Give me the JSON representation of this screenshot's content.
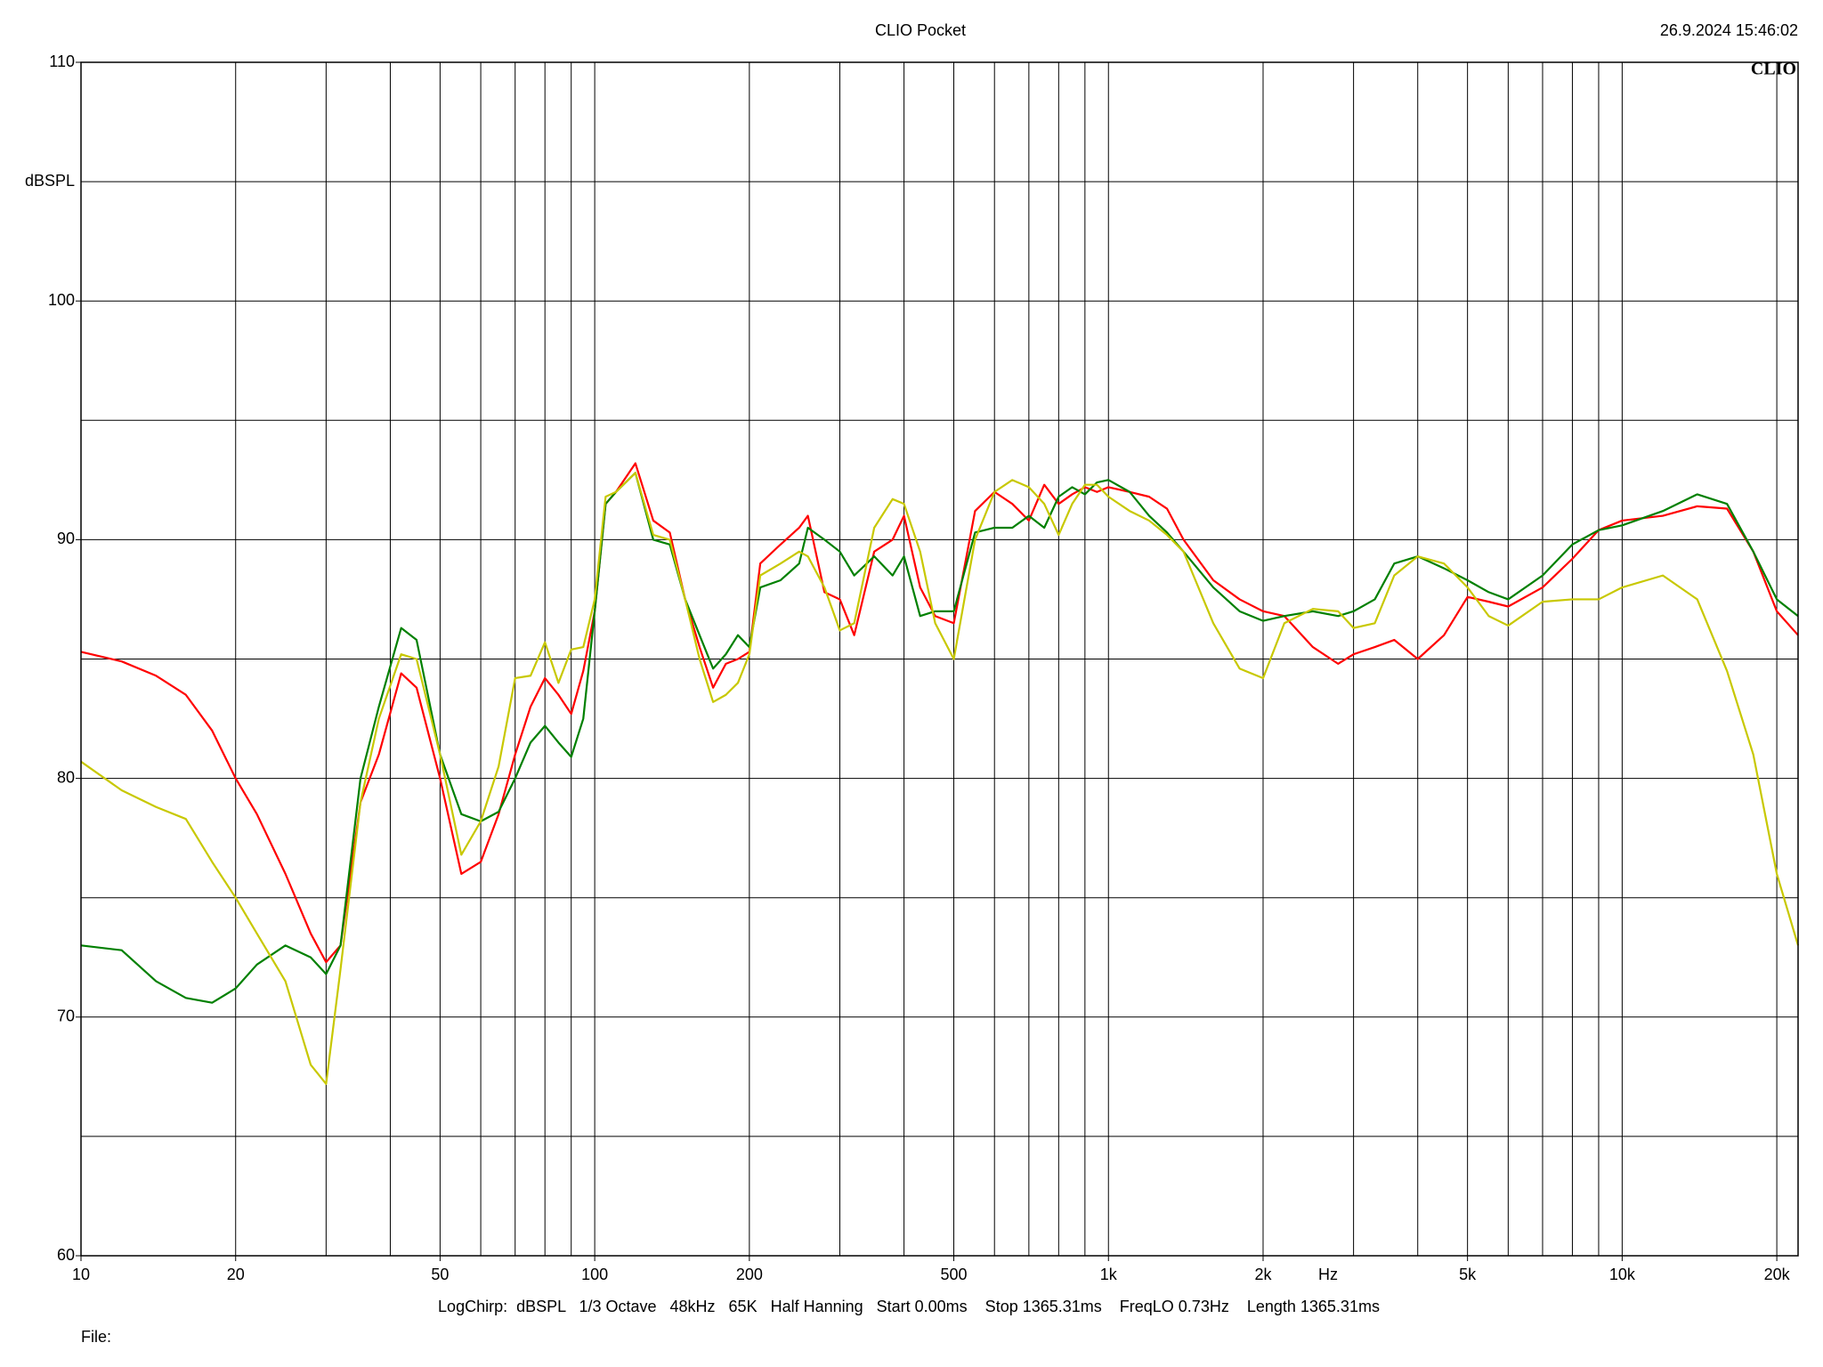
{
  "chart_data": {
    "type": "line",
    "title": "CLIO Pocket",
    "timestamp": "26.9.2024 15:46:02",
    "logo": "CLIO",
    "y_label": "dBSPL",
    "x_label": "Hz",
    "footer": "LogChirp:  dBSPL   1/3 Octave   48kHz   65K   Half Hanning   Start 0.00ms    Stop 1365.31ms    FreqLO 0.73Hz    Length 1365.31ms",
    "file_label": "File:",
    "x_log": true,
    "xlim": [
      10,
      22000
    ],
    "ylim": [
      60,
      110
    ],
    "xticks": [
      10,
      20,
      50,
      100,
      200,
      500,
      {
        "value": 1000,
        "label": "1k"
      },
      {
        "value": 2000,
        "label": "2k"
      },
      {
        "value": 5000,
        "label": "5k"
      },
      {
        "value": 10000,
        "label": "10k"
      },
      {
        "value": 20000,
        "label": "20k"
      }
    ],
    "xgrid": [
      20,
      30,
      40,
      50,
      60,
      70,
      80,
      90,
      100,
      200,
      300,
      400,
      500,
      600,
      700,
      800,
      900,
      1000,
      2000,
      3000,
      4000,
      5000,
      6000,
      7000,
      8000,
      9000,
      10000,
      20000
    ],
    "yticks": [
      60,
      70,
      80,
      90,
      100,
      110
    ],
    "ygrid": [
      65,
      70,
      75,
      80,
      85,
      90,
      95,
      100,
      105
    ],
    "grid": true,
    "x": [
      10,
      12,
      14,
      16,
      18,
      20,
      22,
      25,
      28,
      30,
      32,
      35,
      38,
      42,
      45,
      50,
      55,
      60,
      65,
      70,
      75,
      80,
      85,
      90,
      95,
      100,
      105,
      110,
      120,
      130,
      140,
      150,
      160,
      170,
      180,
      190,
      200,
      210,
      230,
      250,
      260,
      280,
      300,
      320,
      350,
      380,
      400,
      430,
      460,
      500,
      550,
      600,
      650,
      700,
      750,
      800,
      850,
      900,
      950,
      1000,
      1100,
      1200,
      1300,
      1400,
      1600,
      1800,
      2000,
      2200,
      2500,
      2800,
      3000,
      3300,
      3600,
      4000,
      4500,
      5000,
      5500,
      6000,
      7000,
      8000,
      9000,
      10000,
      12000,
      14000,
      16000,
      18000,
      20000,
      22000
    ],
    "series": [
      {
        "color": "#ff0000",
        "values": [
          85.3,
          84.9,
          84.3,
          83.5,
          82.0,
          80,
          78.5,
          76,
          73.5,
          72.3,
          73,
          79,
          81,
          84.4,
          83.8,
          80,
          76,
          76.5,
          78.5,
          81,
          83,
          84.2,
          83.5,
          82.7,
          84.5,
          87,
          91.5,
          92,
          93.2,
          90.8,
          90.3,
          87.5,
          85.5,
          83.8,
          84.8,
          85,
          85.3,
          89,
          89.8,
          90.5,
          91,
          87.8,
          87.5,
          86,
          89.5,
          90,
          91,
          88,
          86.8,
          86.5,
          91.2,
          92,
          91.5,
          90.8,
          92.3,
          91.5,
          91.9,
          92.2,
          92.0,
          92.2,
          92,
          91.8,
          91.3,
          90,
          88.3,
          87.5,
          87,
          86.8,
          85.5,
          84.8,
          85.2,
          85.5,
          85.8,
          85,
          86,
          87.6,
          87.4,
          87.2,
          88,
          89.2,
          90.4,
          90.8,
          91,
          91.4,
          91.3,
          89.5,
          87,
          86
        ]
      },
      {
        "color": "#008000",
        "values": [
          73,
          72.8,
          71.5,
          70.8,
          70.6,
          71.2,
          72.2,
          73,
          72.5,
          71.8,
          73,
          80,
          83,
          86.3,
          85.8,
          81,
          78.5,
          78.2,
          78.6,
          80,
          81.5,
          82.2,
          81.5,
          80.9,
          82.5,
          87,
          91.5,
          92,
          92.8,
          90,
          89.8,
          87.5,
          86,
          84.6,
          85.2,
          86,
          85.5,
          88,
          88.3,
          89,
          90.5,
          90,
          89.5,
          88.5,
          89.3,
          88.5,
          89.3,
          86.8,
          87,
          87,
          90.3,
          90.5,
          90.5,
          91,
          90.5,
          91.8,
          92.2,
          91.9,
          92.4,
          92.5,
          92,
          91,
          90.3,
          89.5,
          88,
          87,
          86.6,
          86.8,
          87,
          86.8,
          87,
          87.5,
          89,
          89.3,
          88.8,
          88.3,
          87.8,
          87.5,
          88.5,
          89.8,
          90.4,
          90.6,
          91.2,
          91.9,
          91.5,
          89.5,
          87.5,
          86.8
        ]
      },
      {
        "color": "#c8c800",
        "values": [
          80.7,
          79.5,
          78.8,
          78.3,
          76.5,
          75,
          73.5,
          71.5,
          68,
          67.2,
          72,
          79,
          82.5,
          85.2,
          85,
          81,
          76.8,
          78.2,
          80.5,
          84.2,
          84.3,
          85.7,
          84,
          85.4,
          85.5,
          87.5,
          91.8,
          92,
          92.8,
          90.2,
          90,
          87.5,
          85,
          83.2,
          83.5,
          84,
          85.2,
          88.5,
          89,
          89.5,
          89.3,
          88,
          86.2,
          86.5,
          90.5,
          91.7,
          91.5,
          89.5,
          86.5,
          85,
          90,
          92,
          92.5,
          92.2,
          91.5,
          90.2,
          91.5,
          92.3,
          92.3,
          91.8,
          91.2,
          90.8,
          90.2,
          89.5,
          86.5,
          84.6,
          84.2,
          86.5,
          87.1,
          87,
          86.3,
          86.5,
          88.5,
          89.3,
          89,
          88,
          86.8,
          86.4,
          87.4,
          87.5,
          87.5,
          88,
          88.5,
          87.5,
          84.5,
          81,
          76,
          73
        ]
      }
    ]
  }
}
